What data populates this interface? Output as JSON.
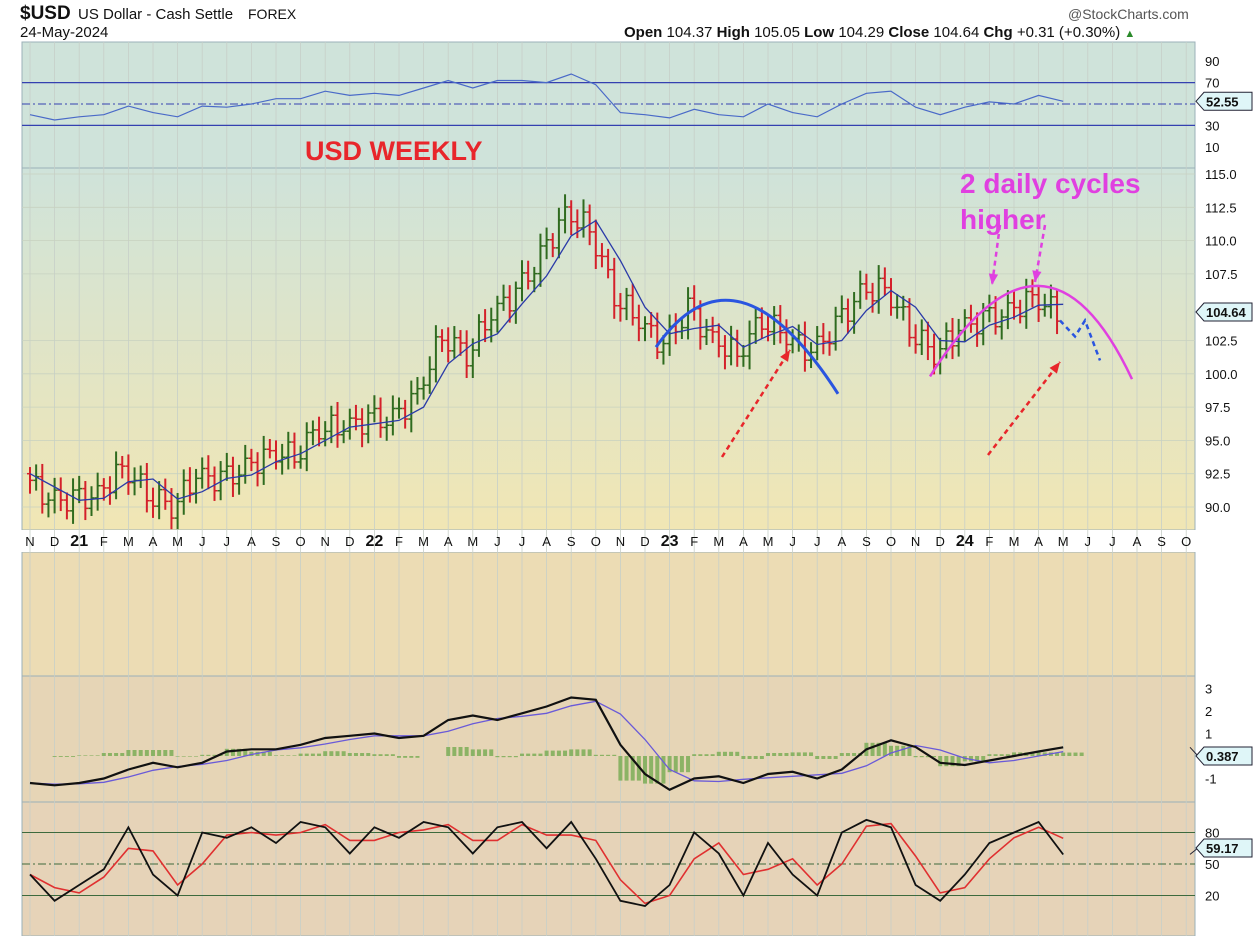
{
  "header": {
    "symbol": "$USD",
    "name": "US Dollar - Cash Settle",
    "exchange": "FOREX",
    "date": "24-May-2024",
    "brand": "@StockCharts.com",
    "open_label": "Open",
    "open": "104.37",
    "high_label": "High",
    "high": "105.05",
    "low_label": "Low",
    "low": "104.29",
    "close_label": "Close",
    "close": "104.64",
    "chg_label": "Chg",
    "chg": "+0.31 (+0.30%)"
  },
  "annotations": {
    "title": "USD WEEKLY",
    "note_line1": "2 daily cycles",
    "note_line2": "higher"
  },
  "chart_data": {
    "type": "ohlc",
    "x_labels": [
      "N",
      "D",
      "21",
      "F",
      "M",
      "A",
      "M",
      "J",
      "J",
      "A",
      "S",
      "O",
      "N",
      "D",
      "22",
      "F",
      "M",
      "A",
      "M",
      "J",
      "J",
      "A",
      "S",
      "O",
      "N",
      "D",
      "23",
      "F",
      "M",
      "A",
      "M",
      "J",
      "J",
      "A",
      "S",
      "O",
      "N",
      "D",
      "24",
      "F",
      "M",
      "A",
      "M",
      "J",
      "J",
      "A",
      "S",
      "O"
    ],
    "price": {
      "closes_monthly": [
        92.5,
        90.5,
        90.5,
        90.8,
        93,
        91.2,
        90,
        92.3,
        92,
        92.8,
        94,
        94,
        96,
        96,
        96.5,
        96.5,
        98.5,
        103,
        101.5,
        104.5,
        106,
        108.7,
        112,
        111,
        106,
        104,
        102,
        104.8,
        102.5,
        101.5,
        104.2,
        102.9,
        101.5,
        103.5,
        106,
        106.5,
        103.5,
        101.5,
        103.3,
        104,
        104.5,
        105.8,
        104.64
      ],
      "ticks": [
        "115.0",
        "112.5",
        "110.0",
        "107.5",
        "102.5",
        "100.0",
        "97.5",
        "95.0",
        "92.5",
        "90.0"
      ],
      "last_label": "104.64",
      "ylim": [
        89,
        116
      ]
    },
    "rsi": {
      "values": [
        40,
        35,
        38,
        40,
        48,
        42,
        38,
        48,
        47,
        50,
        55,
        55,
        62,
        58,
        60,
        58,
        65,
        72,
        65,
        72,
        72,
        70,
        78,
        68,
        42,
        40,
        37,
        45,
        40,
        38,
        50,
        42,
        38,
        50,
        60,
        62,
        47,
        40,
        47,
        52,
        50,
        58,
        52.5
      ],
      "ticks": [
        "90",
        "70",
        "30",
        "10"
      ],
      "last_label": "52.55",
      "levels": [
        70,
        50,
        30
      ]
    },
    "macd": {
      "values": [
        -1.2,
        -1.3,
        -1.2,
        -1.0,
        -0.6,
        -0.3,
        -0.5,
        -0.3,
        0.2,
        0.3,
        0.3,
        0.5,
        0.8,
        0.9,
        1.0,
        0.8,
        0.9,
        1.6,
        1.8,
        1.6,
        1.9,
        2.2,
        2.6,
        2.5,
        0.5,
        -0.8,
        -1.5,
        -1.0,
        -0.9,
        -1.2,
        -0.8,
        -0.7,
        -1.0,
        -0.6,
        0.3,
        0.7,
        0.4,
        -0.3,
        -0.4,
        -0.2,
        0,
        0.2,
        0.387
      ],
      "ticks": [
        "3",
        "2",
        "1",
        "-1"
      ],
      "last_label": "0.387"
    },
    "stoch": {
      "values": [
        40,
        15,
        30,
        45,
        85,
        40,
        20,
        80,
        75,
        85,
        70,
        90,
        85,
        60,
        85,
        75,
        90,
        85,
        60,
        85,
        90,
        65,
        90,
        55,
        15,
        10,
        30,
        80,
        60,
        20,
        70,
        40,
        20,
        80,
        92,
        85,
        30,
        15,
        40,
        70,
        80,
        90,
        59
      ],
      "ticks": [
        "80",
        "50",
        "20"
      ],
      "last_label": "59.17"
    }
  },
  "colors": {
    "up": "#2f6b1f",
    "down": "#d4202a",
    "ma": "#2a3aa8",
    "accent_red": "#e8262b",
    "magenta": "#e040e0",
    "blue": "#2a55e0"
  }
}
